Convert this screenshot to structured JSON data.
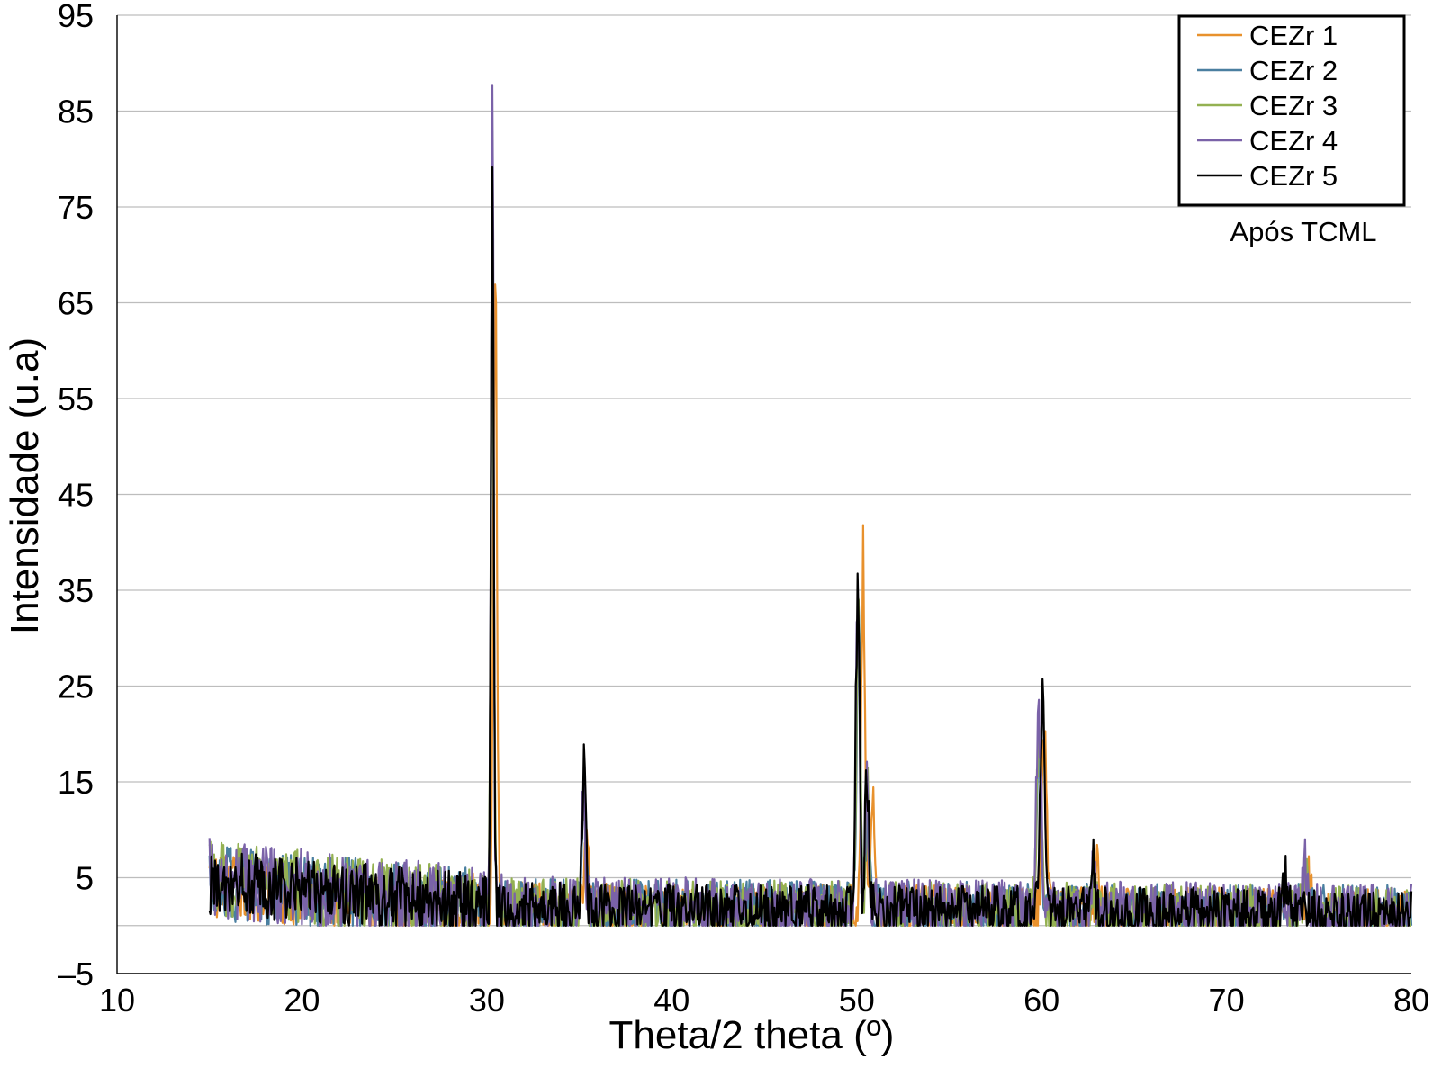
{
  "chart_data": {
    "type": "line",
    "title": "",
    "xlabel": "Theta/2 theta (º)",
    "ylabel": "Intensidade (u.a)",
    "xlim": [
      10,
      80
    ],
    "ylim": [
      -5,
      95
    ],
    "x_ticks": [
      10,
      20,
      30,
      40,
      50,
      60,
      70,
      80
    ],
    "y_ticks": [
      -5,
      5,
      15,
      25,
      35,
      45,
      55,
      65,
      75,
      85,
      95
    ],
    "y_tick_labels": [
      "–5",
      "5",
      "15",
      "25",
      "35",
      "45",
      "55",
      "65",
      "75",
      "85",
      "95"
    ],
    "grid": "horizontal",
    "legend_position": "top-right",
    "annotation": "Após TCML",
    "x_start": 15,
    "x_step": 0.05,
    "series": [
      {
        "name": "CEZr 1",
        "color": "#e8912d",
        "baseline_start": 4,
        "baseline_mid": 2,
        "baseline_end": 1.2,
        "noise": 2.6,
        "peaks": [
          [
            30.45,
            72,
            0.09
          ],
          [
            35.4,
            11,
            0.1
          ],
          [
            50.35,
            39,
            0.1
          ],
          [
            50.85,
            15,
            0.1
          ],
          [
            60.15,
            20,
            0.13
          ],
          [
            63.0,
            9,
            0.07
          ],
          [
            74.4,
            4,
            0.15
          ]
        ]
      },
      {
        "name": "CEZr 2",
        "color": "#4a7fa0",
        "baseline_start": 4.5,
        "baseline_mid": 2,
        "baseline_end": 1.2,
        "noise": 3.0,
        "peaks": [
          [
            30.3,
            84,
            0.07
          ],
          [
            35.25,
            14,
            0.1
          ],
          [
            50.1,
            34,
            0.1
          ],
          [
            50.6,
            14,
            0.1
          ],
          [
            59.85,
            18,
            0.13
          ],
          [
            62.8,
            5,
            0.07
          ],
          [
            74.2,
            4,
            0.15
          ]
        ]
      },
      {
        "name": "CEZr 3",
        "color": "#94b152",
        "baseline_start": 5,
        "baseline_mid": 2,
        "baseline_end": 1.2,
        "noise": 3.0,
        "peaks": [
          [
            30.3,
            85,
            0.07
          ],
          [
            35.25,
            13,
            0.1
          ],
          [
            50.1,
            35,
            0.1
          ],
          [
            50.6,
            14,
            0.1
          ],
          [
            59.85,
            19,
            0.13
          ],
          [
            62.8,
            5,
            0.07
          ],
          [
            74.3,
            5,
            0.15
          ]
        ]
      },
      {
        "name": "CEZr 4",
        "color": "#7a62a8",
        "baseline_start": 5,
        "baseline_mid": 2,
        "baseline_end": 1.2,
        "noise": 3.2,
        "peaks": [
          [
            30.3,
            87,
            0.07
          ],
          [
            35.2,
            15,
            0.1
          ],
          [
            50.05,
            36,
            0.1
          ],
          [
            50.55,
            14,
            0.1
          ],
          [
            59.85,
            22,
            0.13
          ],
          [
            62.8,
            6,
            0.07
          ],
          [
            74.2,
            5,
            0.15
          ]
        ]
      },
      {
        "name": "CEZr 5",
        "color": "#000000",
        "baseline_start": 4.5,
        "baseline_mid": 2,
        "baseline_end": 1.2,
        "noise": 2.6,
        "peaks": [
          [
            30.3,
            83,
            0.07
          ],
          [
            35.25,
            16,
            0.1
          ],
          [
            50.05,
            37,
            0.1
          ],
          [
            50.55,
            15,
            0.1
          ],
          [
            60.05,
            24,
            0.13
          ],
          [
            62.8,
            6,
            0.07
          ],
          [
            73.2,
            4,
            0.15
          ]
        ]
      }
    ]
  }
}
